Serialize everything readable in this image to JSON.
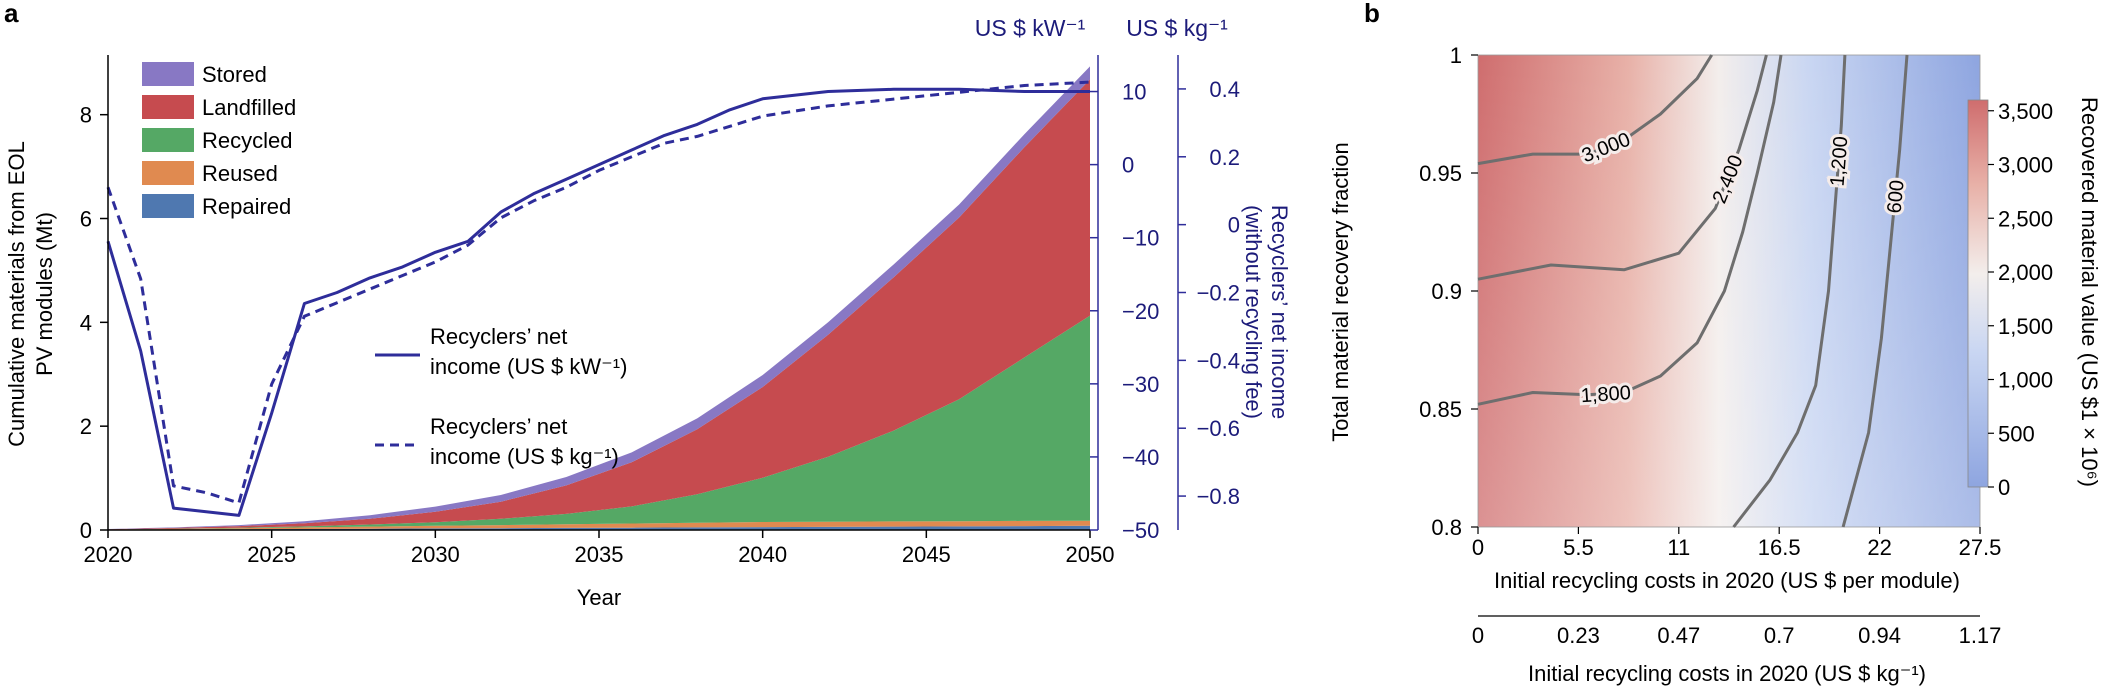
{
  "colors": {
    "stored": "#8878c4",
    "landfilled": "#c64b4f",
    "recycled": "#55a865",
    "reused": "#e08a50",
    "repaired": "#4f78b0",
    "income_line": "#2e2d9a",
    "navy_text": "#1c1b7a",
    "heat_high": "#cf6d6e",
    "heat_mid": "#f3eeec",
    "heat_low": "#8ea5e0",
    "contour": "#6e6e6e"
  },
  "chart_data": [
    {
      "panel": "a",
      "type": "area",
      "panel_label": "a",
      "xlabel": "Year",
      "ylabel": "Cumulative materials from EOL PV modules (Mt)",
      "ylabel_lines": [
        "Cumulative materials from EOL",
        "PV modules (Mt)"
      ],
      "xlim": [
        2020,
        2050
      ],
      "ylim": [
        0,
        9.4
      ],
      "xticks": [
        "2020",
        "2025",
        "2030",
        "2035",
        "2040",
        "2045",
        "2050"
      ],
      "yticks": [
        "0",
        "2",
        "4",
        "6",
        "8"
      ],
      "x": [
        2020,
        2022,
        2024,
        2026,
        2028,
        2030,
        2032,
        2034,
        2036,
        2038,
        2040,
        2042,
        2044,
        2046,
        2048,
        2050
      ],
      "stacked_series": [
        {
          "name": "Repaired",
          "color": "#4f78b0",
          "values": [
            0.005,
            0.01,
            0.015,
            0.02,
            0.025,
            0.03,
            0.035,
            0.04,
            0.045,
            0.05,
            0.055,
            0.06,
            0.065,
            0.07,
            0.075,
            0.08
          ]
        },
        {
          "name": "Reused",
          "color": "#e08a50",
          "values": [
            0.005,
            0.01,
            0.02,
            0.03,
            0.04,
            0.05,
            0.06,
            0.07,
            0.08,
            0.09,
            0.1,
            0.1,
            0.1,
            0.1,
            0.1,
            0.1
          ]
        },
        {
          "name": "Recycled",
          "color": "#55a865",
          "values": [
            0.0,
            0.005,
            0.01,
            0.02,
            0.04,
            0.07,
            0.12,
            0.2,
            0.33,
            0.55,
            0.85,
            1.25,
            1.75,
            2.35,
            3.15,
            3.95
          ]
        },
        {
          "name": "Landfilled",
          "color": "#c64b4f",
          "values": [
            0.005,
            0.015,
            0.03,
            0.06,
            0.11,
            0.2,
            0.33,
            0.55,
            0.85,
            1.25,
            1.75,
            2.35,
            2.95,
            3.5,
            4.05,
            4.55
          ]
        },
        {
          "name": "Stored",
          "color": "#8878c4",
          "values": [
            0.005,
            0.01,
            0.02,
            0.04,
            0.07,
            0.1,
            0.13,
            0.16,
            0.19,
            0.21,
            0.23,
            0.24,
            0.25,
            0.25,
            0.25,
            0.25
          ]
        }
      ],
      "legend": [
        "Stored",
        "Landfilled",
        "Recycled",
        "Reused",
        "Repaired"
      ],
      "legend_position": "top-left",
      "income_series": [
        {
          "name": "Recyclers' net income (US $ kW⁻¹)",
          "label_lines": [
            "Recyclers’ net",
            "income (US $ kW⁻¹)"
          ],
          "style": "solid",
          "axis": "kW",
          "x": [
            2020,
            2021,
            2022,
            2023,
            2024,
            2025,
            2026,
            2027,
            2028,
            2029,
            2030,
            2031,
            2032,
            2033,
            2034,
            2035,
            2036,
            2037,
            2038,
            2039,
            2040,
            2042,
            2044,
            2046,
            2048,
            2050
          ],
          "values": [
            -10.5,
            -25.5,
            -47,
            -47.5,
            -48,
            -34,
            -19,
            -17.5,
            -15.5,
            -14,
            -12,
            -10.5,
            -6.5,
            -4,
            -2,
            0,
            2,
            4,
            5.5,
            7.5,
            9,
            10,
            10.3,
            10.3,
            10,
            10
          ]
        },
        {
          "name": "Recyclers' net income (US $ kg⁻¹)",
          "label_lines": [
            "Recyclers’ net",
            "income (US $ kg⁻¹)"
          ],
          "style": "dashed",
          "axis": "kg",
          "x": [
            2020,
            2021,
            2022,
            2023,
            2024,
            2025,
            2026,
            2027,
            2028,
            2029,
            2030,
            2031,
            2032,
            2033,
            2034,
            2035,
            2036,
            2037,
            2038,
            2039,
            2040,
            2042,
            2044,
            2046,
            2048,
            2050
          ],
          "values": [
            0.11,
            -0.16,
            -0.77,
            -0.79,
            -0.82,
            -0.47,
            -0.27,
            -0.23,
            -0.19,
            -0.15,
            -0.11,
            -0.06,
            0.02,
            0.07,
            0.11,
            0.16,
            0.2,
            0.24,
            0.26,
            0.29,
            0.32,
            0.35,
            0.37,
            0.39,
            0.41,
            0.42
          ]
        }
      ],
      "right_axis_kw": {
        "label": "US $ kW⁻¹",
        "range": [
          -50,
          15
        ],
        "ticks": [
          "10",
          "0",
          "−10",
          "−20",
          "−30",
          "−40",
          "−50"
        ]
      },
      "right_axis_kg": {
        "label": "US $ kg⁻¹",
        "range": [
          -0.9,
          0.5
        ],
        "ticks": [
          "0.4",
          "0.2",
          "0",
          "−0.2",
          "−0.4",
          "−0.6",
          "−0.8"
        ]
      },
      "right_ylabel_lines": [
        "Recyclers’ net income",
        "(without recycling fee)"
      ]
    },
    {
      "panel": "b",
      "type": "heatmap",
      "panel_label": "b",
      "xlabel": "Initial recycling costs in 2020 (US $ per module)",
      "xlabel2": "Initial recycling costs in 2020 (US $ kg⁻¹)",
      "ylabel": "Total material recovery fraction",
      "xlim": [
        0,
        27.5
      ],
      "ylim": [
        0.8,
        1.0
      ],
      "xticks": [
        "0",
        "5.5",
        "11",
        "16.5",
        "22",
        "27.5"
      ],
      "xticks2": [
        "0",
        "0.23",
        "0.47",
        "0.7",
        "0.94",
        "1.17"
      ],
      "yticks": [
        "1",
        "0.95",
        "0.9",
        "0.85",
        "0.8"
      ],
      "colorbar": {
        "label": "Recovered material value (US $1 × 10⁶)",
        "range": [
          0,
          3600
        ],
        "ticks": [
          "3,500",
          "3,000",
          "2,500",
          "2,000",
          "1,500",
          "1,000",
          "500",
          "0"
        ]
      },
      "contours": [
        {
          "level": "3,000",
          "points": [
            [
              0,
              0.954
            ],
            [
              3,
              0.958
            ],
            [
              6,
              0.958
            ],
            [
              8,
              0.964
            ],
            [
              10,
              0.975
            ],
            [
              12,
              0.99
            ],
            [
              12.8,
              1.0
            ]
          ]
        },
        {
          "level": "2,400",
          "points": [
            [
              0,
              0.905
            ],
            [
              4,
              0.911
            ],
            [
              8,
              0.909
            ],
            [
              11,
              0.916
            ],
            [
              13,
              0.935
            ],
            [
              14.3,
              0.96
            ],
            [
              15.3,
              0.985
            ],
            [
              15.8,
              1.0
            ]
          ]
        },
        {
          "level": "1,800",
          "points": [
            [
              0,
              0.852
            ],
            [
              3,
              0.857
            ],
            [
              6,
              0.856
            ],
            [
              8,
              0.857
            ],
            [
              10,
              0.864
            ],
            [
              12,
              0.878
            ],
            [
              13.5,
              0.9
            ],
            [
              14.5,
              0.925
            ],
            [
              15.3,
              0.95
            ],
            [
              16.2,
              0.98
            ],
            [
              16.6,
              1.0
            ]
          ]
        },
        {
          "level": "1,200",
          "points": [
            [
              14,
              0.8
            ],
            [
              16,
              0.82
            ],
            [
              17.5,
              0.84
            ],
            [
              18.5,
              0.86
            ],
            [
              19.2,
              0.9
            ],
            [
              19.6,
              0.94
            ],
            [
              19.9,
              0.97
            ],
            [
              20.1,
              1.0
            ]
          ]
        },
        {
          "level": "600",
          "points": [
            [
              20,
              0.8
            ],
            [
              21.4,
              0.84
            ],
            [
              22.1,
              0.88
            ],
            [
              22.6,
              0.92
            ],
            [
              23.1,
              0.96
            ],
            [
              23.5,
              1.0
            ]
          ]
        }
      ]
    }
  ]
}
